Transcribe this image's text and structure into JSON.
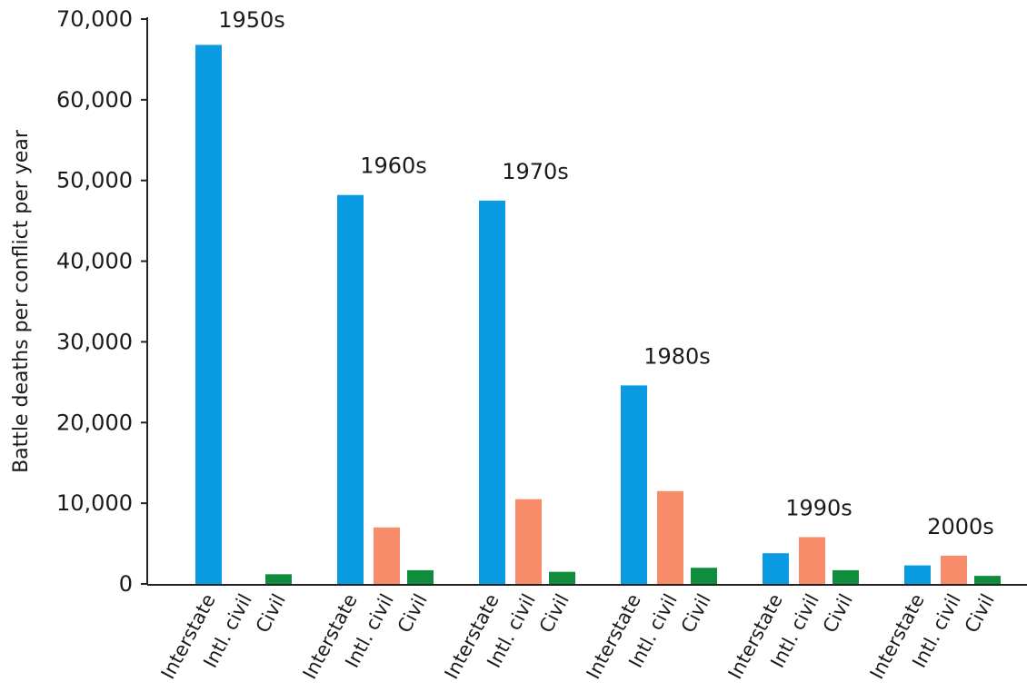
{
  "chart_data": {
    "type": "bar",
    "ylabel": "Battle deaths per conflict per year",
    "ylim": [
      0,
      70000
    ],
    "yticks": [
      "0",
      "10,000",
      "20,000",
      "30,000",
      "40,000",
      "50,000",
      "60,000",
      "70,000"
    ],
    "grid": false,
    "categories": [
      "Interstate",
      "Intl. civil",
      "Civil"
    ],
    "groups": [
      {
        "label": "1950s",
        "values": [
          66800,
          0,
          1200
        ]
      },
      {
        "label": "1960s",
        "values": [
          48200,
          7000,
          1700
        ]
      },
      {
        "label": "1970s",
        "values": [
          47500,
          10500,
          1500
        ]
      },
      {
        "label": "1980s",
        "values": [
          24600,
          11500,
          2000
        ]
      },
      {
        "label": "1990s",
        "values": [
          3800,
          5800,
          1700
        ]
      },
      {
        "label": "2000s",
        "values": [
          2300,
          3500,
          1000
        ]
      }
    ],
    "colors": [
      "#0b9be3",
      "#f78b6a",
      "#0f8c3c"
    ]
  }
}
